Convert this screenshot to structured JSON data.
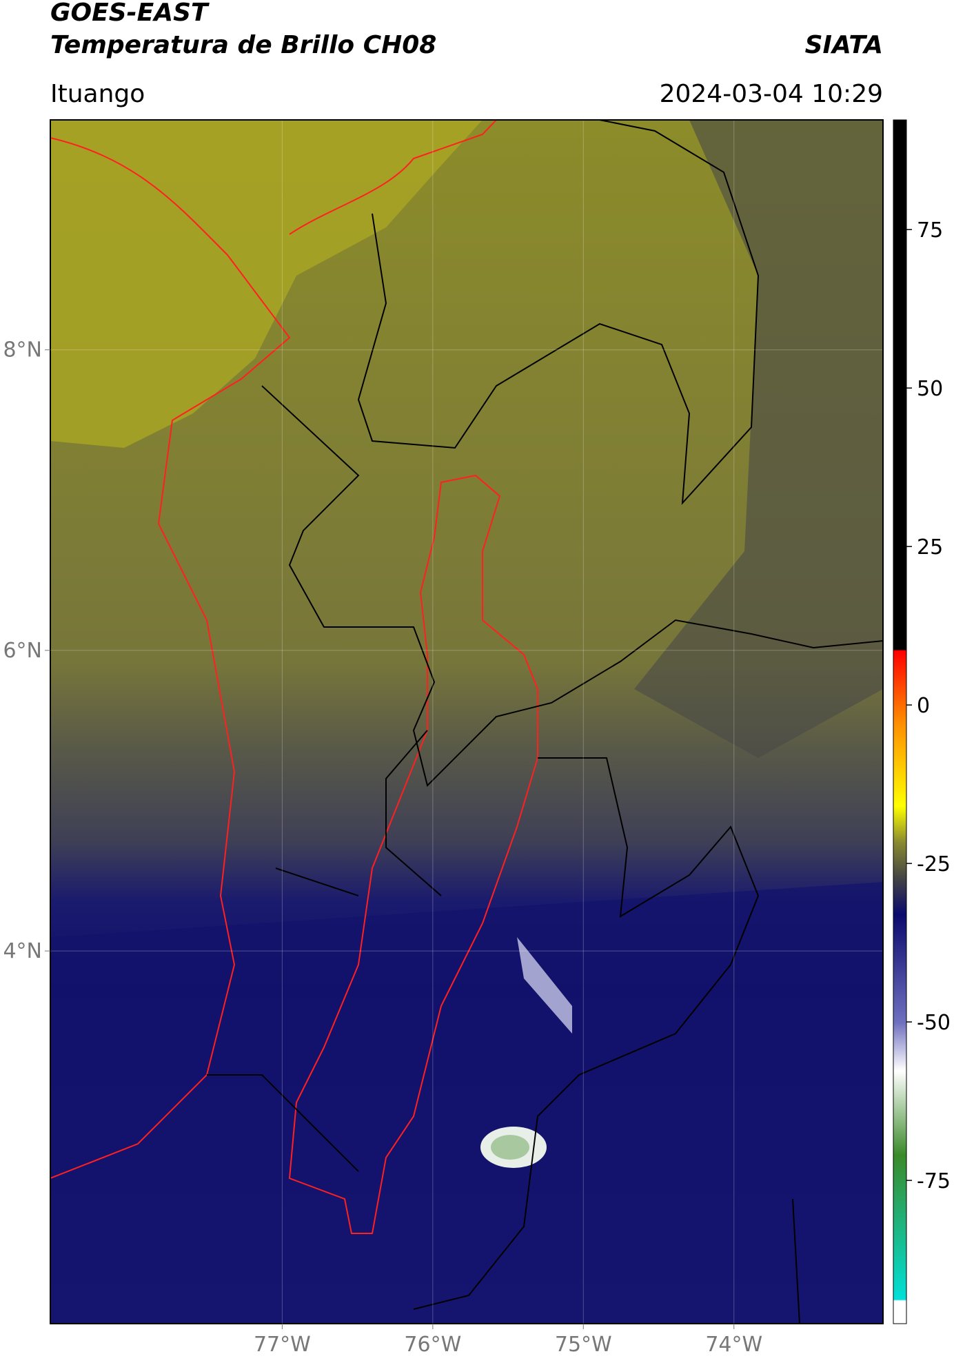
{
  "header": {
    "title": "GOES-EAST",
    "subtitle": "Temperatura de Brillo CH08",
    "brand": "SIATA",
    "location": "Ituango",
    "timestamp": "2024-03-04 10:29"
  },
  "map": {
    "lon_range": [
      -78.54,
      -73.01
    ],
    "lat_range": [
      1.52,
      9.53
    ],
    "lon_ticks": [
      {
        "value": -77,
        "label": "77°W"
      },
      {
        "value": -76,
        "label": "76°W"
      },
      {
        "value": -75,
        "label": "75°W"
      },
      {
        "value": -74,
        "label": "74°W"
      }
    ],
    "lat_ticks": [
      {
        "value": 8,
        "label": "8°N"
      },
      {
        "value": 6,
        "label": "6°N"
      },
      {
        "value": 4,
        "label": "4°N"
      }
    ]
  },
  "colorbar": {
    "range": [
      -97.6,
      92.3
    ],
    "ticks": [
      75,
      50,
      25,
      0,
      -25,
      -50,
      -75
    ]
  }
}
